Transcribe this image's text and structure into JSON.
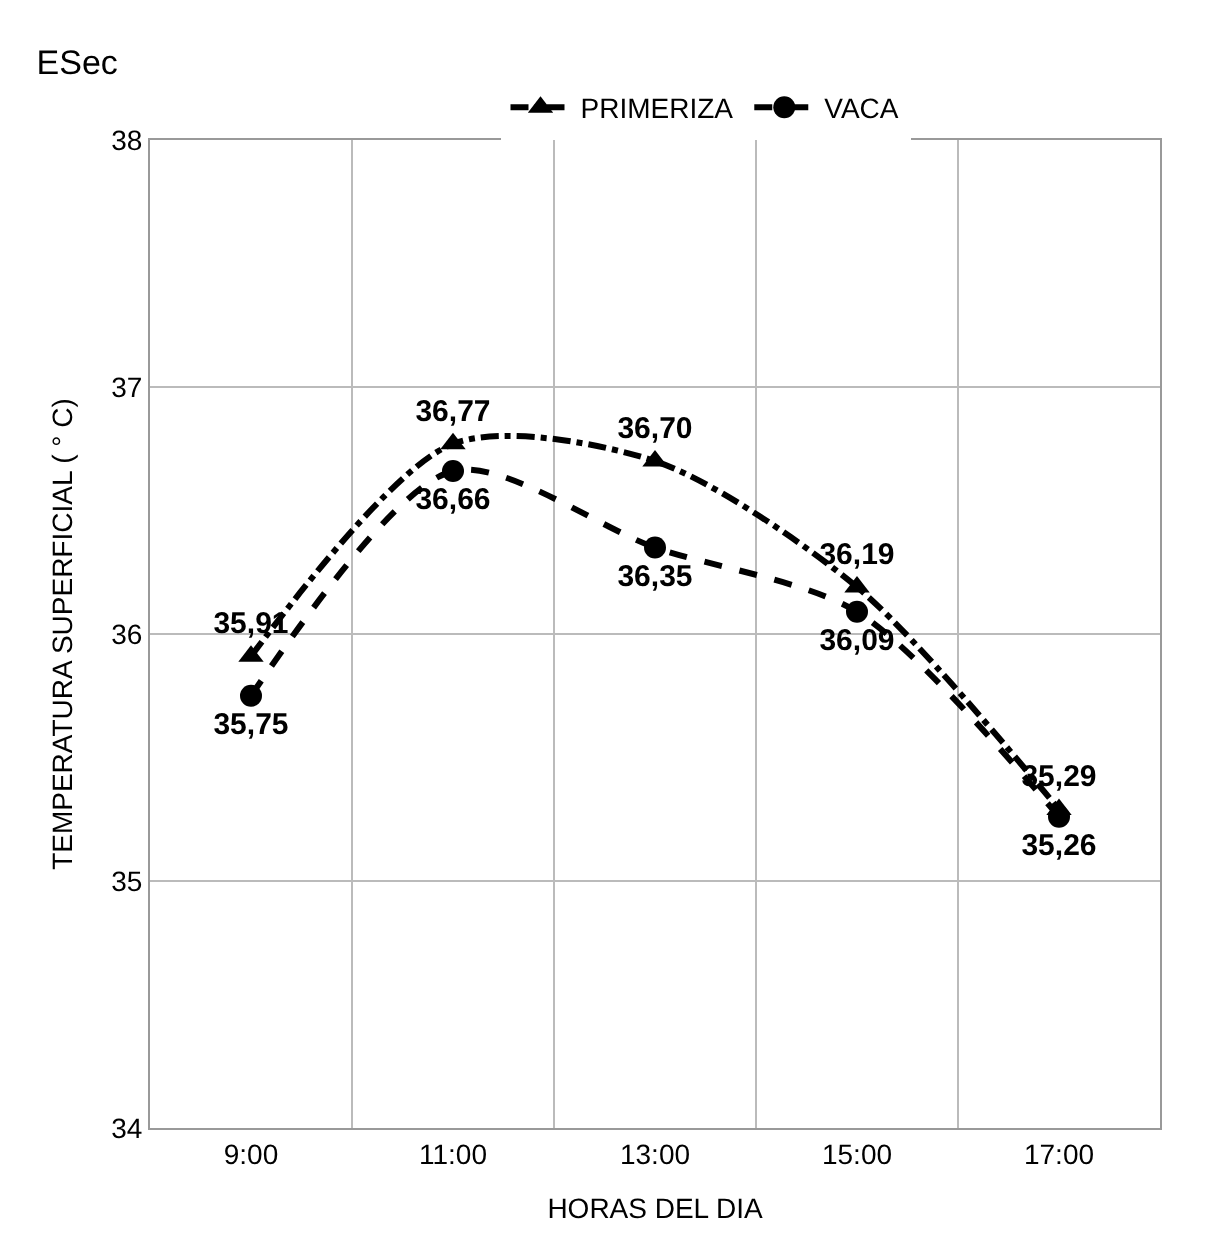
{
  "chart_data": {
    "type": "line",
    "title": "ESec",
    "xlabel": "HORAS DEL DIA",
    "ylabel": "TEMPERATURA SUPERFICIAL ( ° C)",
    "categories": [
      "9:00",
      "11:00",
      "13:00",
      "15:00",
      "17:00"
    ],
    "series": [
      {
        "name": "PRIMERIZA",
        "color": "#000000",
        "marker": "triangle",
        "line_style": "dashdot",
        "values": [
          35.91,
          36.77,
          36.7,
          36.19,
          35.29
        ],
        "value_labels": [
          "35,91",
          "36,77",
          "36,70",
          "36,19",
          "35,29"
        ]
      },
      {
        "name": "VACA",
        "color": "#000000",
        "marker": "circle",
        "line_style": "dashed",
        "values": [
          35.75,
          36.66,
          36.35,
          36.09,
          35.26
        ],
        "value_labels": [
          "35,75",
          "36,66",
          "36,35",
          "36,09",
          "35,26"
        ]
      }
    ],
    "ylim": [
      34,
      38
    ],
    "yticks": [
      34,
      35,
      36,
      37,
      38
    ],
    "grid": true,
    "legend": "top"
  }
}
